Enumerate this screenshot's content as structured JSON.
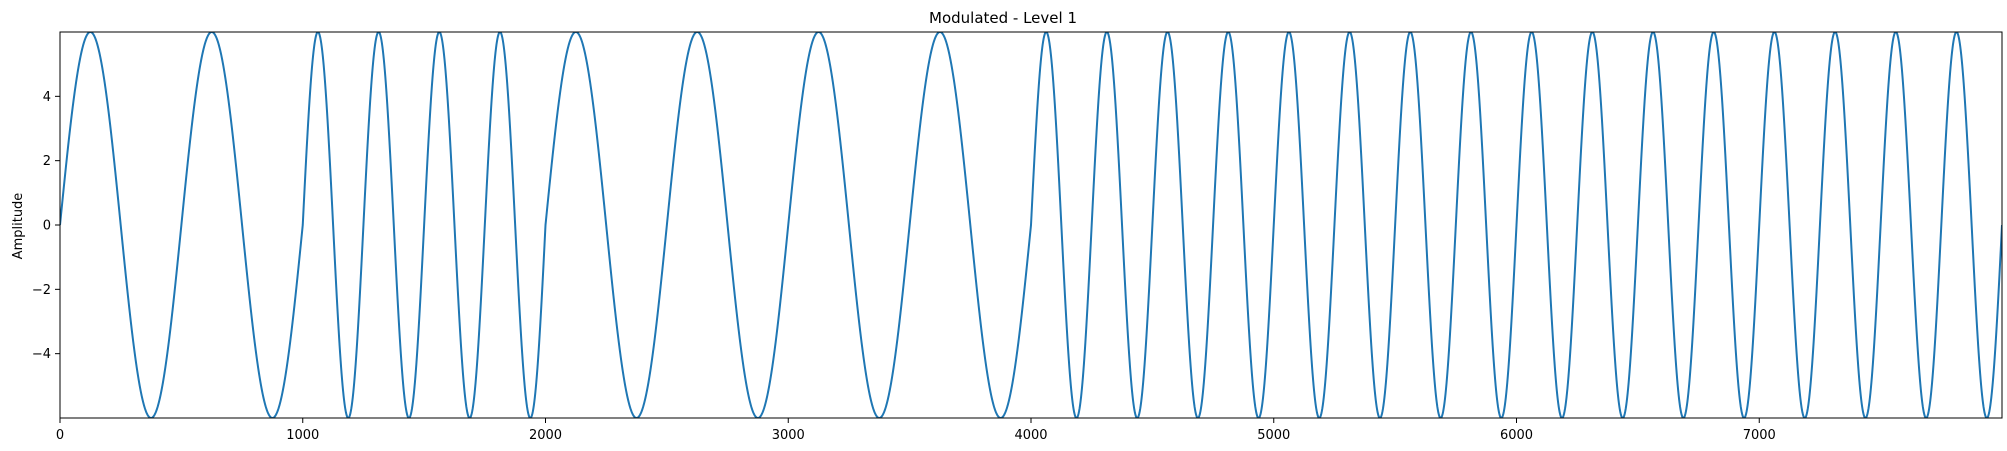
{
  "chart_data": {
    "type": "line",
    "title": "Modulated - Level 1",
    "xlabel": "",
    "ylabel": "Amplitude",
    "xlim": [
      0,
      8000
    ],
    "ylim": [
      -6,
      6
    ],
    "x_ticks": [
      0,
      1000,
      2000,
      3000,
      4000,
      5000,
      6000,
      7000
    ],
    "y_ticks": [
      -4,
      -2,
      0,
      2,
      4
    ],
    "grid": false,
    "line_color": "#1f77b4",
    "series": [
      {
        "amplitude": 6,
        "segments": [
          {
            "x_start": 0,
            "x_end": 1000,
            "period": 500
          },
          {
            "x_start": 1000,
            "x_end": 2000,
            "period": 250
          },
          {
            "x_start": 2000,
            "x_end": 4000,
            "period": 500
          },
          {
            "x_start": 4000,
            "x_end": 8000,
            "period": 250
          }
        ]
      }
    ]
  }
}
